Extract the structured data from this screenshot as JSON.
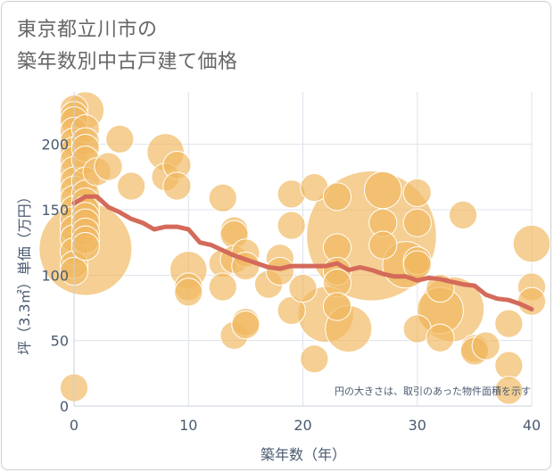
{
  "title_line1": "東京都立川市の",
  "title_line2": "築年数別中古戸建て価格",
  "chart_data": {
    "type": "scatter",
    "title": "東京都立川市の築年数別中古戸建て価格",
    "xlabel": "築年数（年）",
    "ylabel": "坪（3.3㎡）単価（万円）",
    "xlim": [
      0,
      40
    ],
    "ylim": [
      0,
      240
    ],
    "xticks": [
      0,
      10,
      20,
      30,
      40
    ],
    "yticks": [
      0,
      50,
      100,
      150,
      200
    ],
    "grid": true,
    "annotation": "円の大きさは、取引のあった物件面積を示す",
    "bubble_color": "#f0b860",
    "line_color": "#d46a5a",
    "points": [
      {
        "x": 0,
        "y": 227,
        "s": 3
      },
      {
        "x": 0,
        "y": 222,
        "s": 3
      },
      {
        "x": 0,
        "y": 218,
        "s": 3
      },
      {
        "x": 0,
        "y": 210,
        "s": 3
      },
      {
        "x": 0,
        "y": 202,
        "s": 3
      },
      {
        "x": 0,
        "y": 195,
        "s": 3
      },
      {
        "x": 0,
        "y": 188,
        "s": 3
      },
      {
        "x": 0,
        "y": 180,
        "s": 3
      },
      {
        "x": 0,
        "y": 172,
        "s": 3
      },
      {
        "x": 0,
        "y": 165,
        "s": 3
      },
      {
        "x": 0,
        "y": 158,
        "s": 3
      },
      {
        "x": 0,
        "y": 150,
        "s": 3
      },
      {
        "x": 0,
        "y": 142,
        "s": 3
      },
      {
        "x": 0,
        "y": 135,
        "s": 3
      },
      {
        "x": 0,
        "y": 128,
        "s": 3
      },
      {
        "x": 0,
        "y": 118,
        "s": 3
      },
      {
        "x": 0,
        "y": 108,
        "s": 3
      },
      {
        "x": 0,
        "y": 103,
        "s": 3
      },
      {
        "x": 0,
        "y": 14,
        "s": 3
      },
      {
        "x": 1,
        "y": 226,
        "s": 4
      },
      {
        "x": 1,
        "y": 212,
        "s": 3
      },
      {
        "x": 1,
        "y": 202,
        "s": 3
      },
      {
        "x": 1,
        "y": 197,
        "s": 3
      },
      {
        "x": 1,
        "y": 188,
        "s": 3
      },
      {
        "x": 1,
        "y": 172,
        "s": 3
      },
      {
        "x": 1,
        "y": 162,
        "s": 3
      },
      {
        "x": 1,
        "y": 156,
        "s": 3
      },
      {
        "x": 1,
        "y": 150,
        "s": 3
      },
      {
        "x": 1,
        "y": 145,
        "s": 3
      },
      {
        "x": 1,
        "y": 140,
        "s": 3
      },
      {
        "x": 1,
        "y": 133,
        "s": 3
      },
      {
        "x": 1,
        "y": 127,
        "s": 3
      },
      {
        "x": 1,
        "y": 122,
        "s": 3
      },
      {
        "x": 1,
        "y": 120,
        "s": 10
      },
      {
        "x": 2,
        "y": 179,
        "s": 3
      },
      {
        "x": 3,
        "y": 183,
        "s": 3
      },
      {
        "x": 4,
        "y": 204,
        "s": 3
      },
      {
        "x": 5,
        "y": 168,
        "s": 3
      },
      {
        "x": 8,
        "y": 194,
        "s": 4
      },
      {
        "x": 8,
        "y": 175,
        "s": 3
      },
      {
        "x": 9,
        "y": 184,
        "s": 3
      },
      {
        "x": 9,
        "y": 168,
        "s": 3
      },
      {
        "x": 10,
        "y": 104,
        "s": 4
      },
      {
        "x": 10,
        "y": 91,
        "s": 3
      },
      {
        "x": 10,
        "y": 87,
        "s": 3
      },
      {
        "x": 13,
        "y": 159,
        "s": 3
      },
      {
        "x": 13,
        "y": 109,
        "s": 3
      },
      {
        "x": 13,
        "y": 91,
        "s": 3
      },
      {
        "x": 14,
        "y": 134,
        "s": 3
      },
      {
        "x": 14,
        "y": 131,
        "s": 3
      },
      {
        "x": 14,
        "y": 112,
        "s": 3
      },
      {
        "x": 14,
        "y": 54,
        "s": 3
      },
      {
        "x": 15,
        "y": 117,
        "s": 3
      },
      {
        "x": 15,
        "y": 107,
        "s": 3
      },
      {
        "x": 15,
        "y": 64,
        "s": 3
      },
      {
        "x": 15,
        "y": 62,
        "s": 3
      },
      {
        "x": 17,
        "y": 93,
        "s": 3
      },
      {
        "x": 18,
        "y": 113,
        "s": 3
      },
      {
        "x": 18,
        "y": 103,
        "s": 3
      },
      {
        "x": 19,
        "y": 162,
        "s": 3
      },
      {
        "x": 19,
        "y": 138,
        "s": 3
      },
      {
        "x": 19,
        "y": 73,
        "s": 3
      },
      {
        "x": 20,
        "y": 90,
        "s": 3
      },
      {
        "x": 21,
        "y": 167,
        "s": 3
      },
      {
        "x": 21,
        "y": 36,
        "s": 3
      },
      {
        "x": 22,
        "y": 70,
        "s": 6
      },
      {
        "x": 23,
        "y": 160,
        "s": 3
      },
      {
        "x": 23,
        "y": 121,
        "s": 3
      },
      {
        "x": 23,
        "y": 103,
        "s": 3
      },
      {
        "x": 23,
        "y": 94,
        "s": 3
      },
      {
        "x": 23,
        "y": 76,
        "s": 3
      },
      {
        "x": 24,
        "y": 59,
        "s": 5
      },
      {
        "x": 26,
        "y": 130,
        "s": 14
      },
      {
        "x": 27,
        "y": 165,
        "s": 4
      },
      {
        "x": 27,
        "y": 140,
        "s": 3
      },
      {
        "x": 27,
        "y": 123,
        "s": 3
      },
      {
        "x": 29,
        "y": 108,
        "s": 5
      },
      {
        "x": 30,
        "y": 163,
        "s": 3
      },
      {
        "x": 30,
        "y": 140,
        "s": 3
      },
      {
        "x": 30,
        "y": 111,
        "s": 3
      },
      {
        "x": 30,
        "y": 108,
        "s": 3
      },
      {
        "x": 30,
        "y": 59,
        "s": 3
      },
      {
        "x": 32,
        "y": 90,
        "s": 3
      },
      {
        "x": 32,
        "y": 73,
        "s": 5
      },
      {
        "x": 32,
        "y": 52,
        "s": 3
      },
      {
        "x": 33,
        "y": 74,
        "s": 7
      },
      {
        "x": 34,
        "y": 146,
        "s": 3
      },
      {
        "x": 35,
        "y": 44,
        "s": 3
      },
      {
        "x": 35,
        "y": 42,
        "s": 3
      },
      {
        "x": 36,
        "y": 46,
        "s": 3
      },
      {
        "x": 38,
        "y": 63,
        "s": 3
      },
      {
        "x": 38,
        "y": 31,
        "s": 3
      },
      {
        "x": 38,
        "y": 12,
        "s": 3
      },
      {
        "x": 40,
        "y": 124,
        "s": 4
      },
      {
        "x": 40,
        "y": 91,
        "s": 3
      },
      {
        "x": 40,
        "y": 80,
        "s": 3
      }
    ],
    "trend": {
      "x": [
        0,
        1,
        2,
        3,
        4,
        5,
        6,
        7,
        8,
        9,
        10,
        11,
        12,
        13,
        14,
        15,
        16,
        17,
        18,
        19,
        20,
        21,
        22,
        23,
        24,
        25,
        26,
        27,
        28,
        29,
        30,
        31,
        32,
        33,
        34,
        35,
        36,
        37,
        38,
        39,
        40
      ],
      "y": [
        155,
        160,
        160,
        152,
        148,
        143,
        140,
        135,
        137,
        137,
        135,
        125,
        123,
        119,
        115,
        112,
        109,
        106,
        105,
        107,
        107,
        107,
        107,
        109,
        104,
        106,
        104,
        101,
        99,
        99,
        96,
        98,
        97,
        95,
        93,
        92,
        85,
        82,
        81,
        78,
        74
      ]
    }
  }
}
